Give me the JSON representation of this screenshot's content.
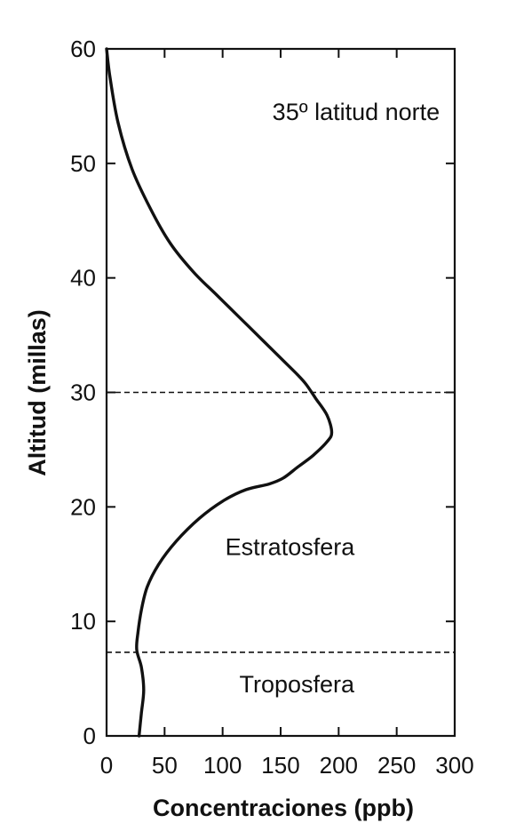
{
  "chart_data": {
    "type": "line",
    "title": "",
    "xlabel": "Concentraciones (ppb)",
    "ylabel": "Altitud (millas)",
    "xlim": [
      0,
      300
    ],
    "ylim": [
      0,
      60
    ],
    "x_ticks": [
      0,
      50,
      100,
      150,
      200,
      250,
      300
    ],
    "y_ticks": [
      0,
      10,
      20,
      30,
      40,
      50,
      60
    ],
    "grid": false,
    "legend": "none",
    "colors": {
      "line": "#111111",
      "axes": "#111111",
      "background": "#ffffff"
    },
    "series": [
      {
        "x": [
          28,
          30,
          32,
          30,
          26,
          27,
          30,
          35,
          45,
          60,
          80,
          100,
          120,
          140,
          152,
          165,
          178,
          190,
          194,
          190,
          180,
          172,
          165,
          150,
          135,
          115,
          95,
          75,
          55,
          38,
          22,
          10,
          3,
          0
        ],
        "y": [
          0,
          2,
          4,
          6,
          7.5,
          9,
          11,
          13,
          15,
          17,
          19,
          20.5,
          21.5,
          22,
          22.5,
          23.5,
          24.5,
          25.7,
          26.5,
          28,
          29.5,
          30.7,
          31.5,
          33,
          34.5,
          36.5,
          38.5,
          40.5,
          43,
          46,
          49.5,
          53.5,
          57.5,
          60
        ]
      }
    ],
    "reference_lines": [
      {
        "y": 30,
        "style": "dashed"
      },
      {
        "y": 7.3,
        "style": "dashed"
      }
    ],
    "annotations": [
      {
        "text": "35º latitud norte",
        "x": 215,
        "y": 54.5
      },
      {
        "text": "Estratosfera",
        "x": 158,
        "y": 16.5
      },
      {
        "text": "Troposfera",
        "x": 164,
        "y": 4.5
      }
    ]
  }
}
